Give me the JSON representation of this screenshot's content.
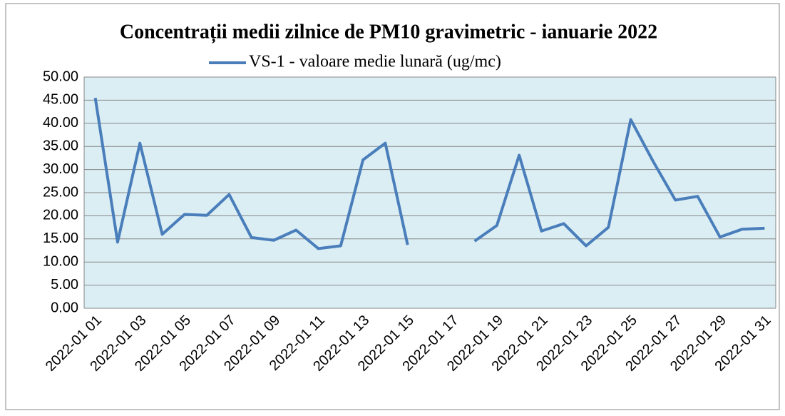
{
  "chart_data": {
    "type": "line",
    "title": "Concentrații  medii zilnice de PM10 gravimetric - ianuarie 2022",
    "categories": [
      "2022-01 01",
      null,
      "2022-01 03",
      null,
      "2022-01 05",
      null,
      "2022-01 07",
      null,
      "2022-01 09",
      null,
      "2022-01 11",
      null,
      "2022-01 13",
      null,
      "2022-01 15",
      null,
      "2022-01 17",
      null,
      "2022-01 19",
      null,
      "2022-01 21",
      null,
      "2022-01 23",
      null,
      "2022-01 25",
      null,
      "2022-01 27",
      null,
      "2022-01 29",
      null,
      "2022-01 31"
    ],
    "series": [
      {
        "name": "VS-1 - valoare medie lunară (ug/mc)",
        "color": "#4a7ebb",
        "values": [
          45.5,
          14.3,
          35.7,
          16.0,
          20.3,
          20.1,
          24.6,
          15.3,
          14.7,
          16.9,
          12.9,
          13.5,
          32.1,
          35.7,
          13.7,
          null,
          null,
          14.5,
          17.9,
          33.1,
          16.7,
          18.3,
          13.5,
          17.5,
          40.8,
          31.8,
          23.4,
          24.2,
          15.4,
          17.1,
          17.3
        ]
      }
    ],
    "ylim": [
      0,
      50
    ],
    "yticks": [
      {
        "value": 0,
        "label": "0.00"
      },
      {
        "value": 5,
        "label": "5.00"
      },
      {
        "value": 10,
        "label": "10.00"
      },
      {
        "value": 15,
        "label": "15.00"
      },
      {
        "value": 20,
        "label": "20.00"
      },
      {
        "value": 25,
        "label": "25.00"
      },
      {
        "value": 30,
        "label": "30.00"
      },
      {
        "value": 35,
        "label": "35.00"
      },
      {
        "value": 40,
        "label": "40.00"
      },
      {
        "value": 45,
        "label": "45.00"
      },
      {
        "value": 50,
        "label": "50.00"
      }
    ],
    "grid": true,
    "plot_background": "#dbeef4",
    "legend": "top"
  }
}
